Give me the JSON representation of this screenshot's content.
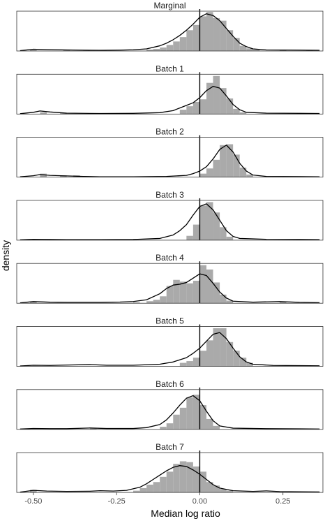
{
  "chart_data": {
    "type": "histogram-density-facets",
    "xlabel": "Median log ratio",
    "ylabel": "density",
    "xlim": [
      -0.55,
      0.37
    ],
    "xticks": [
      -0.5,
      -0.25,
      0.0,
      0.25
    ],
    "xtick_labels": [
      "-0.50",
      "-0.25",
      "0.00",
      "0.25"
    ],
    "reference_line_x": 0,
    "colors": {
      "bars": "#aaaaaa",
      "density": "#000000",
      "reference": "#000000",
      "frame": "#333333"
    },
    "panels": [
      {
        "title": "Marginal",
        "ymax": 2.3,
        "bins": [
          [
            -0.51,
            0.05
          ],
          [
            -0.41,
            0.05
          ],
          [
            -0.35,
            0.03
          ],
          [
            -0.3,
            0.04
          ],
          [
            -0.16,
            0.08
          ],
          [
            -0.14,
            0.12
          ],
          [
            -0.12,
            0.2
          ],
          [
            -0.1,
            0.35
          ],
          [
            -0.08,
            0.55
          ],
          [
            -0.06,
            0.8
          ],
          [
            -0.04,
            1.2
          ],
          [
            -0.02,
            1.5
          ],
          [
            0.0,
            2.0
          ],
          [
            0.02,
            2.25
          ],
          [
            0.04,
            1.9
          ],
          [
            0.06,
            1.75
          ],
          [
            0.08,
            1.2
          ],
          [
            0.1,
            0.75
          ],
          [
            0.12,
            0.3
          ],
          [
            0.14,
            0.15
          ],
          [
            0.16,
            0.08
          ],
          [
            0.24,
            0.05
          ],
          [
            0.32,
            0.04
          ]
        ],
        "density": [
          [
            -0.54,
            0.02
          ],
          [
            -0.5,
            0.1
          ],
          [
            -0.46,
            0.08
          ],
          [
            -0.4,
            0.06
          ],
          [
            -0.36,
            0.05
          ],
          [
            -0.3,
            0.04
          ],
          [
            -0.24,
            0.05
          ],
          [
            -0.2,
            0.07
          ],
          [
            -0.16,
            0.12
          ],
          [
            -0.12,
            0.3
          ],
          [
            -0.1,
            0.45
          ],
          [
            -0.08,
            0.65
          ],
          [
            -0.06,
            0.9
          ],
          [
            -0.04,
            1.2
          ],
          [
            -0.02,
            1.55
          ],
          [
            0.0,
            1.95
          ],
          [
            0.02,
            2.15
          ],
          [
            0.04,
            2.05
          ],
          [
            0.06,
            1.75
          ],
          [
            0.08,
            1.3
          ],
          [
            0.1,
            0.85
          ],
          [
            0.12,
            0.45
          ],
          [
            0.14,
            0.25
          ],
          [
            0.16,
            0.12
          ],
          [
            0.2,
            0.06
          ],
          [
            0.3,
            0.05
          ],
          [
            0.36,
            0.04
          ]
        ]
      },
      {
        "title": "Batch 1",
        "ymax": 2.3,
        "bins": [
          [
            -0.48,
            0.1
          ],
          [
            -0.42,
            0.05
          ],
          [
            -0.06,
            0.25
          ],
          [
            -0.04,
            0.45
          ],
          [
            -0.02,
            0.7
          ],
          [
            0.0,
            0.85
          ],
          [
            0.02,
            1.8
          ],
          [
            0.04,
            2.2
          ],
          [
            0.06,
            1.5
          ],
          [
            0.08,
            0.9
          ],
          [
            0.1,
            0.3
          ],
          [
            0.12,
            0.1
          ]
        ],
        "density": [
          [
            -0.54,
            0.02
          ],
          [
            -0.5,
            0.1
          ],
          [
            -0.48,
            0.18
          ],
          [
            -0.45,
            0.12
          ],
          [
            -0.4,
            0.05
          ],
          [
            -0.3,
            0.03
          ],
          [
            -0.2,
            0.04
          ],
          [
            -0.12,
            0.08
          ],
          [
            -0.08,
            0.2
          ],
          [
            -0.06,
            0.35
          ],
          [
            -0.04,
            0.5
          ],
          [
            -0.02,
            0.65
          ],
          [
            0.0,
            0.95
          ],
          [
            0.02,
            1.35
          ],
          [
            0.04,
            1.6
          ],
          [
            0.06,
            1.5
          ],
          [
            0.08,
            1.05
          ],
          [
            0.1,
            0.55
          ],
          [
            0.12,
            0.25
          ],
          [
            0.14,
            0.1
          ],
          [
            0.2,
            0.05
          ],
          [
            0.3,
            0.04
          ],
          [
            0.36,
            0.03
          ]
        ]
      },
      {
        "title": "Batch 2",
        "ymax": 2.3,
        "bins": [
          [
            -0.48,
            0.2
          ],
          [
            -0.42,
            0.1
          ],
          [
            -0.38,
            0.1
          ],
          [
            0.0,
            0.2
          ],
          [
            0.02,
            0.5
          ],
          [
            0.04,
            1.0
          ],
          [
            0.06,
            1.85
          ],
          [
            0.08,
            1.9
          ],
          [
            0.1,
            1.3
          ],
          [
            0.12,
            0.55
          ],
          [
            0.14,
            0.15
          ]
        ],
        "density": [
          [
            -0.54,
            0.02
          ],
          [
            -0.5,
            0.08
          ],
          [
            -0.48,
            0.15
          ],
          [
            -0.45,
            0.1
          ],
          [
            -0.4,
            0.07
          ],
          [
            -0.35,
            0.04
          ],
          [
            -0.3,
            0.02
          ],
          [
            -0.2,
            0.02
          ],
          [
            -0.1,
            0.04
          ],
          [
            -0.04,
            0.1
          ],
          [
            -0.02,
            0.2
          ],
          [
            0.0,
            0.35
          ],
          [
            0.02,
            0.6
          ],
          [
            0.04,
            1.05
          ],
          [
            0.06,
            1.6
          ],
          [
            0.08,
            1.85
          ],
          [
            0.1,
            1.45
          ],
          [
            0.12,
            0.8
          ],
          [
            0.14,
            0.35
          ],
          [
            0.16,
            0.12
          ],
          [
            0.2,
            0.04
          ],
          [
            0.3,
            0.03
          ],
          [
            0.36,
            0.02
          ]
        ]
      },
      {
        "title": "Batch 3",
        "ymax": 2.3,
        "bins": [
          [
            -0.04,
            0.25
          ],
          [
            -0.02,
            0.9
          ],
          [
            0.0,
            2.0
          ],
          [
            0.02,
            2.2
          ],
          [
            0.04,
            1.6
          ],
          [
            0.06,
            0.75
          ],
          [
            0.08,
            0.2
          ]
        ],
        "density": [
          [
            -0.54,
            0.02
          ],
          [
            -0.5,
            0.05
          ],
          [
            -0.45,
            0.04
          ],
          [
            -0.4,
            0.03
          ],
          [
            -0.3,
            0.03
          ],
          [
            -0.2,
            0.04
          ],
          [
            -0.12,
            0.1
          ],
          [
            -0.08,
            0.3
          ],
          [
            -0.06,
            0.55
          ],
          [
            -0.04,
            0.9
          ],
          [
            -0.02,
            1.45
          ],
          [
            0.0,
            1.95
          ],
          [
            0.02,
            2.1
          ],
          [
            0.04,
            1.75
          ],
          [
            0.06,
            1.15
          ],
          [
            0.08,
            0.55
          ],
          [
            0.1,
            0.22
          ],
          [
            0.12,
            0.1
          ],
          [
            0.2,
            0.05
          ],
          [
            0.3,
            0.04
          ],
          [
            0.36,
            0.03
          ]
        ]
      },
      {
        "title": "Batch 4",
        "ymax": 2.3,
        "bins": [
          [
            -0.51,
            0.1
          ],
          [
            -0.2,
            0.05
          ],
          [
            -0.16,
            0.12
          ],
          [
            -0.14,
            0.2
          ],
          [
            -0.12,
            0.4
          ],
          [
            -0.1,
            1.0
          ],
          [
            -0.08,
            1.35
          ],
          [
            -0.06,
            1.25
          ],
          [
            -0.04,
            1.15
          ],
          [
            -0.02,
            1.3
          ],
          [
            0.0,
            2.2
          ],
          [
            0.02,
            1.95
          ],
          [
            0.04,
            1.2
          ],
          [
            0.06,
            0.5
          ],
          [
            0.08,
            0.15
          ],
          [
            0.24,
            0.08
          ]
        ],
        "density": [
          [
            -0.54,
            0.02
          ],
          [
            -0.5,
            0.1
          ],
          [
            -0.45,
            0.06
          ],
          [
            -0.4,
            0.05
          ],
          [
            -0.3,
            0.05
          ],
          [
            -0.24,
            0.07
          ],
          [
            -0.2,
            0.1
          ],
          [
            -0.16,
            0.2
          ],
          [
            -0.12,
            0.55
          ],
          [
            -0.1,
            0.85
          ],
          [
            -0.08,
            1.05
          ],
          [
            -0.06,
            1.1
          ],
          [
            -0.04,
            1.2
          ],
          [
            -0.02,
            1.45
          ],
          [
            0.0,
            1.7
          ],
          [
            0.02,
            1.6
          ],
          [
            0.04,
            1.15
          ],
          [
            0.06,
            0.65
          ],
          [
            0.08,
            0.3
          ],
          [
            0.1,
            0.12
          ],
          [
            0.16,
            0.06
          ],
          [
            0.24,
            0.1
          ],
          [
            0.3,
            0.05
          ],
          [
            0.36,
            0.03
          ]
        ]
      },
      {
        "title": "Batch 5",
        "ymax": 2.3,
        "bins": [
          [
            -0.06,
            0.2
          ],
          [
            -0.04,
            0.3
          ],
          [
            -0.02,
            0.5
          ],
          [
            0.0,
            0.9
          ],
          [
            0.02,
            1.5
          ],
          [
            0.04,
            2.2
          ],
          [
            0.06,
            2.2
          ],
          [
            0.08,
            1.4
          ],
          [
            0.1,
            0.9
          ],
          [
            0.12,
            0.5
          ],
          [
            0.14,
            0.2
          ]
        ],
        "density": [
          [
            -0.54,
            0.02
          ],
          [
            -0.5,
            0.06
          ],
          [
            -0.45,
            0.05
          ],
          [
            -0.38,
            0.08
          ],
          [
            -0.33,
            0.1
          ],
          [
            -0.28,
            0.06
          ],
          [
            -0.2,
            0.06
          ],
          [
            -0.12,
            0.12
          ],
          [
            -0.08,
            0.25
          ],
          [
            -0.04,
            0.5
          ],
          [
            -0.02,
            0.75
          ],
          [
            0.0,
            1.05
          ],
          [
            0.02,
            1.45
          ],
          [
            0.04,
            1.85
          ],
          [
            0.06,
            1.95
          ],
          [
            0.08,
            1.6
          ],
          [
            0.1,
            1.05
          ],
          [
            0.12,
            0.55
          ],
          [
            0.14,
            0.25
          ],
          [
            0.16,
            0.12
          ],
          [
            0.22,
            0.05
          ],
          [
            0.3,
            0.04
          ],
          [
            0.36,
            0.03
          ]
        ]
      },
      {
        "title": "Batch 6",
        "ymax": 2.3,
        "bins": [
          [
            -0.33,
            0.05
          ],
          [
            -0.12,
            0.15
          ],
          [
            -0.1,
            0.35
          ],
          [
            -0.08,
            0.85
          ],
          [
            -0.06,
            1.25
          ],
          [
            -0.04,
            1.85
          ],
          [
            -0.02,
            2.0
          ],
          [
            0.0,
            1.4
          ],
          [
            0.02,
            0.6
          ],
          [
            0.04,
            0.2
          ]
        ],
        "density": [
          [
            -0.54,
            0.02
          ],
          [
            -0.5,
            0.05
          ],
          [
            -0.45,
            0.04
          ],
          [
            -0.4,
            0.04
          ],
          [
            -0.33,
            0.08
          ],
          [
            -0.28,
            0.05
          ],
          [
            -0.2,
            0.05
          ],
          [
            -0.16,
            0.1
          ],
          [
            -0.12,
            0.28
          ],
          [
            -0.1,
            0.55
          ],
          [
            -0.08,
            0.95
          ],
          [
            -0.06,
            1.4
          ],
          [
            -0.04,
            1.8
          ],
          [
            -0.02,
            1.95
          ],
          [
            0.0,
            1.65
          ],
          [
            0.02,
            1.05
          ],
          [
            0.04,
            0.5
          ],
          [
            0.06,
            0.2
          ],
          [
            0.1,
            0.07
          ],
          [
            0.2,
            0.04
          ],
          [
            0.3,
            0.03
          ],
          [
            0.36,
            0.02
          ]
        ]
      },
      {
        "title": "Batch 7",
        "ymax": 2.3,
        "bins": [
          [
            -0.51,
            0.15
          ],
          [
            -0.2,
            0.1
          ],
          [
            -0.18,
            0.25
          ],
          [
            -0.16,
            0.45
          ],
          [
            -0.14,
            0.6
          ],
          [
            -0.12,
            0.9
          ],
          [
            -0.1,
            1.2
          ],
          [
            -0.08,
            1.65
          ],
          [
            -0.06,
            1.8
          ],
          [
            -0.04,
            1.75
          ],
          [
            -0.02,
            1.5
          ],
          [
            0.0,
            1.2
          ],
          [
            0.02,
            0.6
          ],
          [
            0.04,
            0.4
          ],
          [
            0.06,
            0.2
          ],
          [
            0.08,
            0.1
          ]
        ],
        "density": [
          [
            -0.54,
            0.02
          ],
          [
            -0.5,
            0.12
          ],
          [
            -0.46,
            0.08
          ],
          [
            -0.4,
            0.06
          ],
          [
            -0.33,
            0.07
          ],
          [
            -0.3,
            0.1
          ],
          [
            -0.26,
            0.08
          ],
          [
            -0.22,
            0.12
          ],
          [
            -0.18,
            0.3
          ],
          [
            -0.16,
            0.5
          ],
          [
            -0.14,
            0.75
          ],
          [
            -0.12,
            1.0
          ],
          [
            -0.1,
            1.25
          ],
          [
            -0.08,
            1.45
          ],
          [
            -0.06,
            1.55
          ],
          [
            -0.04,
            1.5
          ],
          [
            -0.02,
            1.3
          ],
          [
            0.0,
            1.05
          ],
          [
            0.02,
            0.75
          ],
          [
            0.04,
            0.45
          ],
          [
            0.06,
            0.25
          ],
          [
            0.1,
            0.1
          ],
          [
            0.16,
            0.06
          ],
          [
            0.2,
            0.09
          ],
          [
            0.24,
            0.05
          ],
          [
            0.3,
            0.04
          ],
          [
            0.36,
            0.03
          ]
        ]
      }
    ]
  }
}
